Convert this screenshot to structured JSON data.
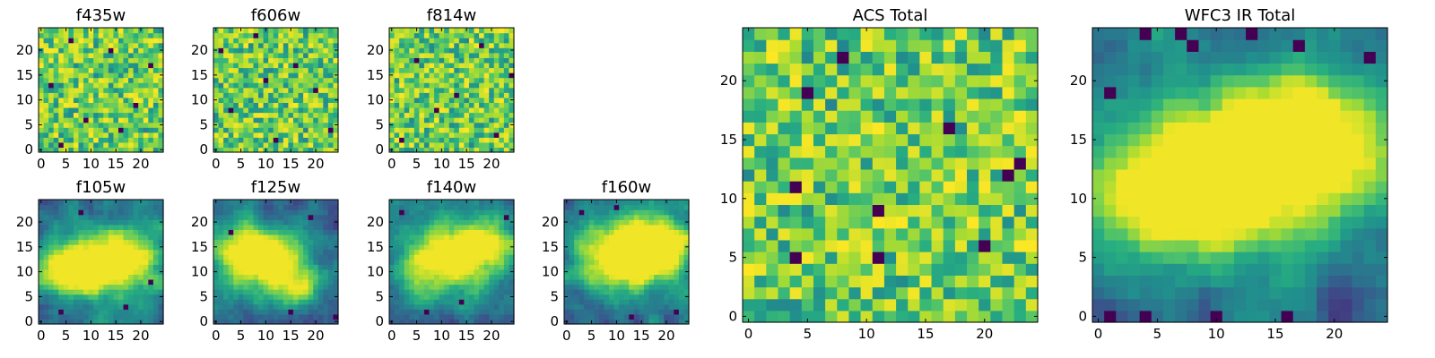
{
  "chart_data": [
    {
      "id": "f435w",
      "type": "heatmap",
      "title": "f435w",
      "size": 25,
      "xticks": [
        0,
        5,
        10,
        15,
        20
      ],
      "yticks": [
        0,
        5,
        10,
        15,
        20
      ],
      "xlim": [
        0,
        25
      ],
      "ylim": [
        0,
        25
      ],
      "style": "noise",
      "seed": 11,
      "blobs": [],
      "dark_spots": [
        [
          4,
          1
        ],
        [
          9,
          6
        ],
        [
          14,
          20
        ],
        [
          2,
          13
        ],
        [
          19,
          9
        ],
        [
          22,
          17
        ],
        [
          6,
          22
        ],
        [
          16,
          4
        ]
      ]
    },
    {
      "id": "f606w",
      "type": "heatmap",
      "title": "f606w",
      "size": 25,
      "xticks": [
        0,
        5,
        10,
        15,
        20
      ],
      "yticks": [
        0,
        5,
        10,
        15,
        20
      ],
      "xlim": [
        0,
        25
      ],
      "ylim": [
        0,
        25
      ],
      "style": "noise",
      "seed": 23,
      "blobs": [],
      "dark_spots": [
        [
          8,
          23
        ],
        [
          12,
          2
        ],
        [
          20,
          12
        ],
        [
          3,
          8
        ],
        [
          16,
          17
        ],
        [
          1,
          20
        ],
        [
          23,
          4
        ],
        [
          10,
          14
        ]
      ]
    },
    {
      "id": "f814w",
      "type": "heatmap",
      "title": "f814w",
      "size": 25,
      "xticks": [
        0,
        5,
        10,
        15,
        20
      ],
      "yticks": [
        0,
        5,
        10,
        15,
        20
      ],
      "xlim": [
        0,
        25
      ],
      "ylim": [
        0,
        25
      ],
      "style": "noise",
      "seed": 37,
      "blobs": [],
      "dark_spots": [
        [
          5,
          18
        ],
        [
          13,
          11
        ],
        [
          21,
          3
        ],
        [
          2,
          2
        ],
        [
          18,
          21
        ],
        [
          9,
          8
        ],
        [
          24,
          15
        ]
      ]
    },
    {
      "id": "f105w",
      "type": "heatmap",
      "title": "f105w",
      "size": 25,
      "xticks": [
        0,
        5,
        10,
        15,
        20
      ],
      "yticks": [
        0,
        5,
        10,
        15,
        20
      ],
      "xlim": [
        0,
        25
      ],
      "ylim": [
        0,
        25
      ],
      "style": "smooth",
      "seed": 41,
      "blobs": [
        [
          14,
          12,
          7,
          0.9
        ],
        [
          5,
          10,
          5,
          0.6
        ]
      ],
      "dark_spots": [
        [
          8,
          22
        ],
        [
          22,
          8
        ],
        [
          17,
          3
        ],
        [
          4,
          2
        ]
      ]
    },
    {
      "id": "f125w",
      "type": "heatmap",
      "title": "f125w",
      "size": 25,
      "xticks": [
        0,
        5,
        10,
        15,
        20
      ],
      "yticks": [
        0,
        5,
        10,
        15,
        20
      ],
      "xlim": [
        0,
        25
      ],
      "ylim": [
        0,
        25
      ],
      "style": "smooth",
      "seed": 53,
      "blobs": [
        [
          8,
          14,
          6,
          0.8
        ],
        [
          15,
          8,
          5,
          0.5
        ]
      ],
      "dark_spots": [
        [
          15,
          2
        ],
        [
          19,
          21
        ],
        [
          3,
          18
        ],
        [
          24,
          1
        ]
      ]
    },
    {
      "id": "f140w",
      "type": "heatmap",
      "title": "f140w",
      "size": 25,
      "xticks": [
        0,
        5,
        10,
        15,
        20
      ],
      "yticks": [
        0,
        5,
        10,
        15,
        20
      ],
      "xlim": [
        0,
        25
      ],
      "ylim": [
        0,
        25
      ],
      "style": "smooth",
      "seed": 67,
      "blobs": [
        [
          11,
          13,
          7,
          0.8
        ],
        [
          20,
          16,
          4,
          0.5
        ]
      ],
      "dark_spots": [
        [
          7,
          2
        ],
        [
          2,
          22
        ],
        [
          23,
          21
        ],
        [
          14,
          4
        ]
      ]
    },
    {
      "id": "f160w",
      "type": "heatmap",
      "title": "f160w",
      "size": 25,
      "xticks": [
        0,
        5,
        10,
        15,
        20
      ],
      "yticks": [
        0,
        5,
        10,
        15,
        20
      ],
      "xlim": [
        0,
        25
      ],
      "ylim": [
        0,
        25
      ],
      "style": "smooth",
      "seed": 79,
      "blobs": [
        [
          12,
          13,
          7,
          0.9
        ],
        [
          18,
          16,
          5,
          0.6
        ]
      ],
      "dark_spots": [
        [
          13,
          1
        ],
        [
          3,
          22
        ],
        [
          22,
          2
        ],
        [
          10,
          23
        ]
      ]
    },
    {
      "id": "acs-total",
      "type": "heatmap",
      "title": "ACS Total",
      "size": 25,
      "xticks": [
        0,
        5,
        10,
        15,
        20
      ],
      "yticks": [
        0,
        5,
        10,
        15,
        20
      ],
      "xlim": [
        0,
        25
      ],
      "ylim": [
        0,
        25
      ],
      "style": "noise",
      "seed": 97,
      "blobs": [],
      "dark_spots": [
        [
          8,
          22
        ],
        [
          5,
          19
        ],
        [
          4,
          5
        ],
        [
          11,
          5
        ],
        [
          17,
          16
        ],
        [
          20,
          6
        ],
        [
          22,
          12
        ],
        [
          23,
          13
        ],
        [
          4,
          11
        ],
        [
          11,
          9
        ]
      ]
    },
    {
      "id": "wfc3-ir-total",
      "type": "heatmap",
      "title": "WFC3 IR Total",
      "size": 25,
      "xticks": [
        0,
        5,
        10,
        15,
        20
      ],
      "yticks": [
        0,
        5,
        10,
        15,
        20
      ],
      "xlim": [
        0,
        25
      ],
      "ylim": [
        0,
        25
      ],
      "style": "smooth",
      "seed": 131,
      "blobs": [
        [
          14,
          13,
          7,
          0.9
        ],
        [
          6,
          10,
          5,
          0.6
        ],
        [
          19,
          17,
          4,
          0.4
        ]
      ],
      "dark_spots": [
        [
          4,
          24
        ],
        [
          7,
          24
        ],
        [
          8,
          23
        ],
        [
          13,
          24
        ],
        [
          17,
          23
        ],
        [
          23,
          22
        ],
        [
          1,
          19
        ],
        [
          1,
          0
        ],
        [
          4,
          0
        ],
        [
          10,
          0
        ],
        [
          16,
          0
        ]
      ]
    }
  ]
}
